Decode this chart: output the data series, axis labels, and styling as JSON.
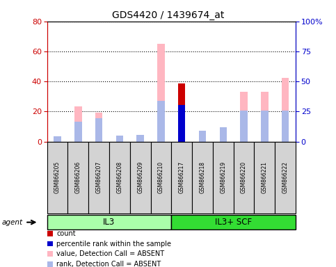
{
  "title": "GDS4420 / 1439674_at",
  "samples": [
    "GSM866205",
    "GSM866206",
    "GSM866207",
    "GSM866208",
    "GSM866209",
    "GSM866210",
    "GSM866217",
    "GSM866218",
    "GSM866219",
    "GSM866220",
    "GSM866221",
    "GSM866222"
  ],
  "groups": [
    {
      "label": "IL3",
      "indices": [
        0,
        1,
        2,
        3,
        4,
        5
      ],
      "color": "#aaffaa"
    },
    {
      "label": "IL3+ SCF",
      "indices": [
        6,
        7,
        8,
        9,
        10,
        11
      ],
      "color": "#33dd33"
    }
  ],
  "count": [
    0,
    0,
    0,
    0,
    0,
    0,
    38.5,
    0,
    0,
    0,
    0,
    0
  ],
  "percentile_rank": [
    0,
    0,
    0,
    0,
    0,
    0,
    24.5,
    0,
    0,
    0,
    0,
    0
  ],
  "value_absent": [
    0,
    23.5,
    19.0,
    0,
    0,
    65.0,
    0,
    6.5,
    9.0,
    33.0,
    33.0,
    42.5
  ],
  "rank_absent": [
    3.5,
    13.0,
    15.5,
    4.0,
    4.5,
    27.0,
    1.5,
    7.0,
    9.5,
    20.5,
    20.5,
    20.5
  ],
  "ylim_left": [
    0,
    80
  ],
  "ylim_right": [
    0,
    100
  ],
  "yticks_left": [
    0,
    20,
    40,
    60,
    80
  ],
  "yticks_right": [
    0,
    25,
    50,
    75,
    100
  ],
  "colors": {
    "count": "#cc0000",
    "percentile_rank": "#0000cc",
    "value_absent": "#ffb6c1",
    "rank_absent": "#aab8e8",
    "axis_left": "#cc0000",
    "axis_right": "#0000cc",
    "bar_bg": "#d3d3d3",
    "label_box_bg": "#d3d3d3",
    "label_box_border": "#000000"
  },
  "legend": [
    {
      "label": "count",
      "color": "#cc0000"
    },
    {
      "label": "percentile rank within the sample",
      "color": "#0000cc"
    },
    {
      "label": "value, Detection Call = ABSENT",
      "color": "#ffb6c1"
    },
    {
      "label": "rank, Detection Call = ABSENT",
      "color": "#aab8e8"
    }
  ]
}
